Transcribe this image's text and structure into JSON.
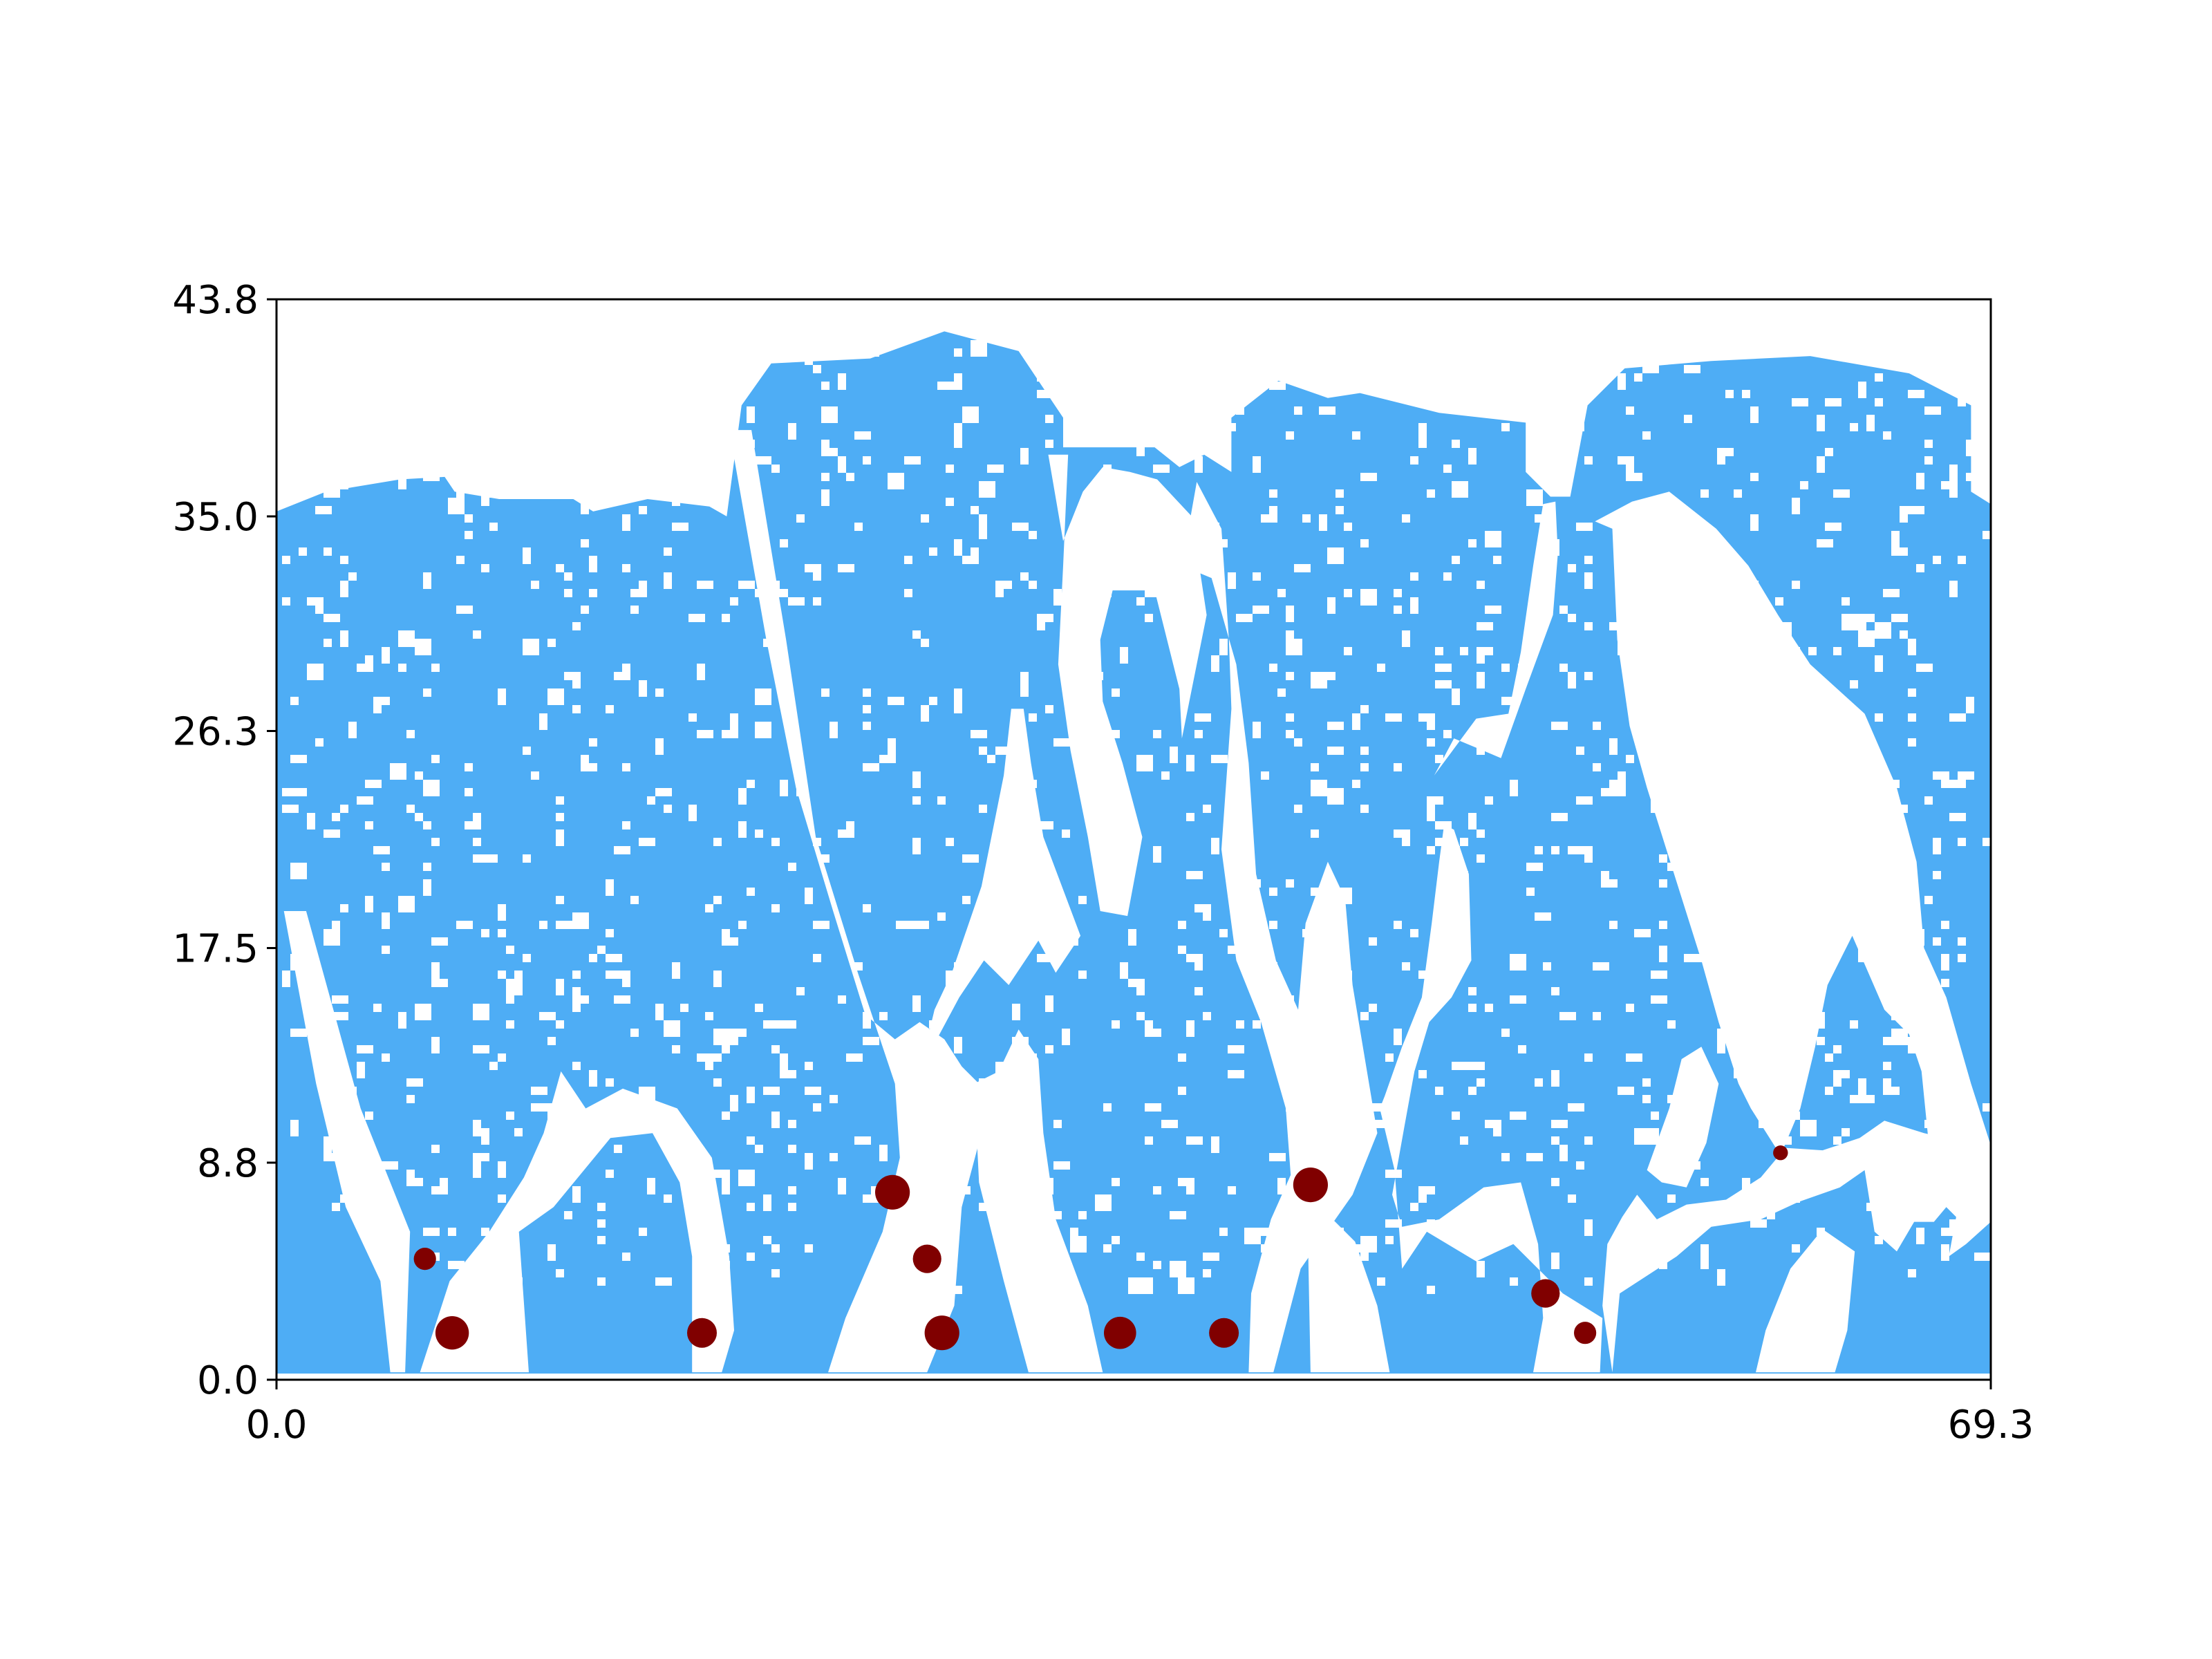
{
  "chart_data": {
    "type": "scatter",
    "title": "",
    "xlabel": "",
    "ylabel": "",
    "xlim": [
      0.0,
      69.3
    ],
    "ylim": [
      0.0,
      43.8
    ],
    "x_ticks": [
      0.0,
      69.3
    ],
    "x_tick_labels": [
      "0.0",
      "69.3"
    ],
    "y_ticks": [
      0.0,
      8.8,
      17.5,
      26.3,
      35.0,
      43.8
    ],
    "y_tick_labels": [
      "0.0",
      "8.8",
      "17.5",
      "26.3",
      "35.0",
      "43.8"
    ],
    "grid": false,
    "legend": "none",
    "background_regions": {
      "description_color": "#4eadf5",
      "color": "#4eadf5",
      "gap_color": "#ffffff"
    },
    "points_color": "#800000",
    "points": [
      {
        "x": 6.0,
        "y": 4.9,
        "size": 0.9
      },
      {
        "x": 7.1,
        "y": 1.9,
        "size": 1.35
      },
      {
        "x": 17.2,
        "y": 1.9,
        "size": 1.2
      },
      {
        "x": 24.9,
        "y": 7.6,
        "size": 1.4
      },
      {
        "x": 26.3,
        "y": 4.9,
        "size": 1.15
      },
      {
        "x": 26.9,
        "y": 1.9,
        "size": 1.4
      },
      {
        "x": 34.1,
        "y": 1.9,
        "size": 1.3
      },
      {
        "x": 38.3,
        "y": 1.9,
        "size": 1.2
      },
      {
        "x": 41.8,
        "y": 7.9,
        "size": 1.4
      },
      {
        "x": 51.3,
        "y": 3.5,
        "size": 1.15
      },
      {
        "x": 52.9,
        "y": 1.9,
        "size": 0.9
      },
      {
        "x": 60.8,
        "y": 9.2,
        "size": 0.6
      }
    ]
  }
}
